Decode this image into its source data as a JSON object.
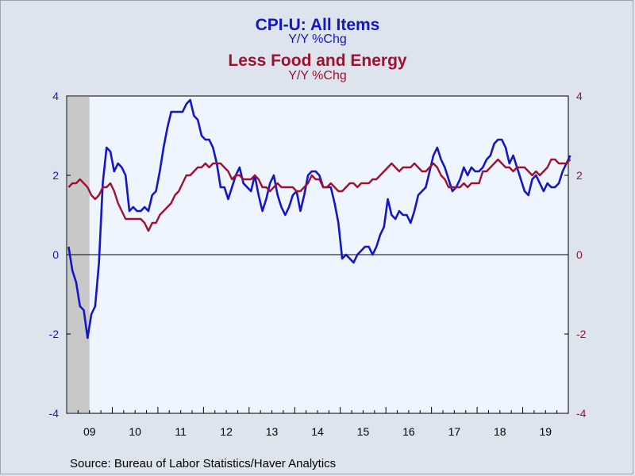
{
  "titles": {
    "series1_title": "CPI-U: All Items",
    "series1_sub": "Y/Y %Chg",
    "series2_title": "Less Food and Energy",
    "series2_sub": "Y/Y %Chg"
  },
  "source": "Source:  Bureau of Labor Statistics/Haver Analytics",
  "colors": {
    "background": "#dde4ee",
    "plot_area": "#eef5ff",
    "recession": "#c8c8c8",
    "series1": "#1515c8",
    "series2": "#a01030",
    "axis": "#000000"
  },
  "chart_data": {
    "type": "line",
    "x_start": "2009-01",
    "frequency": "monthly",
    "xlabels": [
      "09",
      "10",
      "11",
      "12",
      "13",
      "14",
      "15",
      "16",
      "17",
      "18",
      "19"
    ],
    "ylim": [
      -4,
      4
    ],
    "yticks": [
      -4,
      -2,
      0,
      2,
      4
    ],
    "left_axis_color": "#1515c8",
    "right_axis_color": "#a01030",
    "zero_line": true,
    "recession_shading": {
      "start": "2009-01",
      "end": "2009-06"
    },
    "series": [
      {
        "name": "CPI-U: All Items",
        "axis": "left",
        "values": [
          0.2,
          -0.4,
          -0.7,
          -1.3,
          -1.4,
          -2.1,
          -1.5,
          -1.3,
          -0.2,
          1.8,
          2.7,
          2.6,
          2.1,
          2.3,
          2.2,
          2.0,
          1.1,
          1.2,
          1.1,
          1.1,
          1.2,
          1.1,
          1.5,
          1.6,
          2.1,
          2.7,
          3.2,
          3.6,
          3.6,
          3.6,
          3.6,
          3.8,
          3.9,
          3.5,
          3.4,
          3.0,
          2.9,
          2.9,
          2.7,
          2.3,
          1.7,
          1.7,
          1.4,
          1.7,
          2.0,
          2.2,
          1.8,
          1.7,
          1.6,
          2.0,
          1.5,
          1.1,
          1.4,
          1.8,
          2.0,
          1.5,
          1.2,
          1.0,
          1.2,
          1.5,
          1.6,
          1.1,
          1.5,
          2.0,
          2.1,
          2.1,
          2.0,
          1.7,
          1.7,
          1.7,
          1.3,
          0.8,
          -0.1,
          0.0,
          -0.1,
          -0.2,
          0.0,
          0.1,
          0.2,
          0.2,
          0.0,
          0.2,
          0.5,
          0.7,
          1.4,
          1.0,
          0.9,
          1.1,
          1.0,
          1.0,
          0.8,
          1.1,
          1.5,
          1.6,
          1.7,
          2.1,
          2.5,
          2.7,
          2.4,
          2.2,
          1.9,
          1.6,
          1.7,
          1.9,
          2.2,
          2.0,
          2.2,
          2.1,
          2.1,
          2.2,
          2.4,
          2.5,
          2.8,
          2.9,
          2.9,
          2.7,
          2.3,
          2.5,
          2.2,
          1.9,
          1.6,
          1.5,
          1.9,
          2.0,
          1.8,
          1.6,
          1.8,
          1.7,
          1.7,
          1.8,
          2.1,
          2.3,
          2.5
        ]
      },
      {
        "name": "Less Food and Energy",
        "axis": "right",
        "values": [
          1.7,
          1.8,
          1.8,
          1.9,
          1.8,
          1.7,
          1.5,
          1.4,
          1.5,
          1.7,
          1.7,
          1.8,
          1.6,
          1.3,
          1.1,
          0.9,
          0.9,
          0.9,
          0.9,
          0.9,
          0.8,
          0.6,
          0.8,
          0.8,
          1.0,
          1.1,
          1.2,
          1.3,
          1.5,
          1.6,
          1.8,
          2.0,
          2.0,
          2.1,
          2.2,
          2.2,
          2.3,
          2.2,
          2.3,
          2.3,
          2.3,
          2.2,
          2.1,
          1.9,
          2.0,
          2.0,
          1.9,
          1.9,
          1.9,
          2.0,
          1.9,
          1.7,
          1.7,
          1.6,
          1.7,
          1.8,
          1.7,
          1.7,
          1.7,
          1.7,
          1.6,
          1.6,
          1.7,
          1.8,
          2.0,
          1.9,
          1.9,
          1.7,
          1.7,
          1.8,
          1.7,
          1.6,
          1.6,
          1.7,
          1.8,
          1.8,
          1.7,
          1.8,
          1.8,
          1.8,
          1.9,
          1.9,
          2.0,
          2.1,
          2.2,
          2.3,
          2.2,
          2.1,
          2.2,
          2.2,
          2.2,
          2.3,
          2.2,
          2.1,
          2.1,
          2.2,
          2.3,
          2.2,
          2.0,
          1.9,
          1.7,
          1.7,
          1.7,
          1.7,
          1.8,
          1.7,
          1.8,
          1.8,
          1.8,
          2.1,
          2.1,
          2.2,
          2.3,
          2.4,
          2.3,
          2.2,
          2.2,
          2.1,
          2.2,
          2.2,
          2.2,
          2.1,
          2.0,
          2.1,
          2.0,
          2.1,
          2.2,
          2.4,
          2.4,
          2.3,
          2.3,
          2.3,
          2.4
        ]
      }
    ]
  }
}
